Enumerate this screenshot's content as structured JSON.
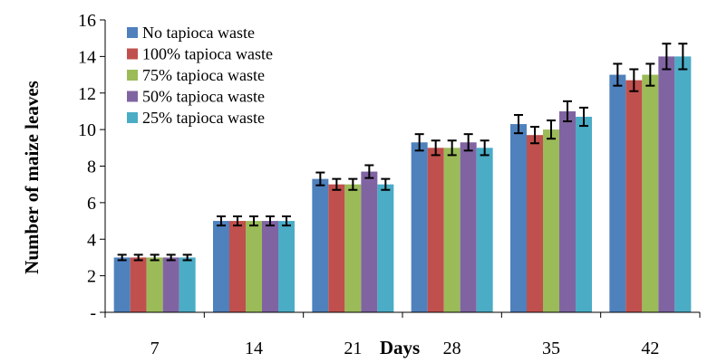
{
  "chart_data": {
    "type": "bar",
    "title": "",
    "xlabel": "Days",
    "ylabel": "Number of maize leaves",
    "categories": [
      "7",
      "14",
      "21",
      "28",
      "35",
      "42"
    ],
    "ylim": [
      0,
      16
    ],
    "yticks": [
      0,
      2,
      4,
      6,
      8,
      10,
      12,
      14,
      16
    ],
    "ytick_labels": [
      "-",
      "2",
      "4",
      "6",
      "8",
      "10",
      "12",
      "14",
      "16"
    ],
    "grid": false,
    "legend_position": "top-left",
    "error_bars": true,
    "series": [
      {
        "name": "No tapioca waste",
        "color": "#4F81BD",
        "values": [
          3.0,
          5.0,
          7.3,
          9.3,
          10.3,
          13.0
        ],
        "errors": [
          0.15,
          0.25,
          0.35,
          0.45,
          0.5,
          0.6
        ]
      },
      {
        "name": "100%  tapioca waste",
        "color": "#C0504D",
        "values": [
          3.0,
          5.0,
          7.0,
          9.0,
          9.7,
          12.7
        ],
        "errors": [
          0.15,
          0.25,
          0.3,
          0.4,
          0.45,
          0.6
        ]
      },
      {
        "name": "75% tapioca waste",
        "color": "#9BBB59",
        "values": [
          3.0,
          5.0,
          7.0,
          9.0,
          10.0,
          13.0
        ],
        "errors": [
          0.15,
          0.25,
          0.3,
          0.4,
          0.5,
          0.6
        ]
      },
      {
        "name": "50% tapioca waste",
        "color": "#8064A2",
        "values": [
          3.0,
          5.0,
          7.7,
          9.3,
          11.0,
          14.0
        ],
        "errors": [
          0.15,
          0.25,
          0.35,
          0.45,
          0.55,
          0.7
        ]
      },
      {
        "name": "25% tapioca waste",
        "color": "#4BACC6",
        "values": [
          3.0,
          5.0,
          7.0,
          9.0,
          10.7,
          14.0
        ],
        "errors": [
          0.15,
          0.25,
          0.3,
          0.4,
          0.5,
          0.7
        ]
      }
    ]
  }
}
